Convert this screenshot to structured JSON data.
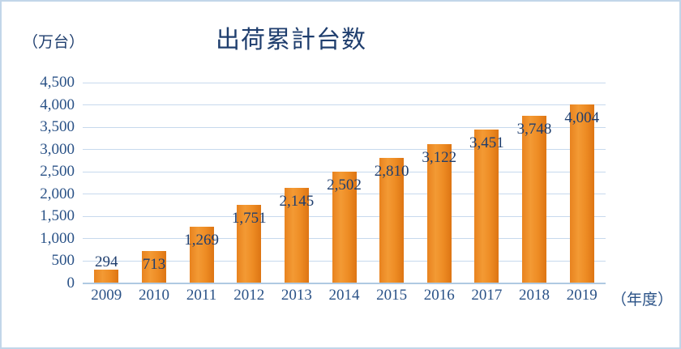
{
  "chart_data": {
    "type": "bar",
    "title": "出荷累計台数",
    "unit_label": "（万台）",
    "xaxis_suffix_label": "（年度）",
    "categories": [
      "2009",
      "2010",
      "2011",
      "2012",
      "2013",
      "2014",
      "2015",
      "2016",
      "2017",
      "2018",
      "2019"
    ],
    "values": [
      294,
      713,
      1269,
      1751,
      2145,
      2502,
      2810,
      3122,
      3451,
      3748,
      4004
    ],
    "data_labels": [
      "294",
      "713",
      "1,269",
      "1,751",
      "2,145",
      "2,502",
      "2,810",
      "3,122",
      "3,451",
      "3,748",
      "4,004"
    ],
    "ylim": [
      0,
      4500
    ],
    "ytick_step": 500,
    "ytick_values": [
      0,
      500,
      1000,
      1500,
      2000,
      2500,
      3000,
      3500,
      4000,
      4500
    ],
    "ytick_labels": [
      "0",
      "500",
      "1,000",
      "1,500",
      "2,000",
      "2,500",
      "3,000",
      "3,500",
      "4,000",
      "4,500"
    ],
    "grid": true,
    "legend": "none",
    "data_label_position": "inside-end (outside for shortest bar)",
    "colors": {
      "bar": "#ED8A24",
      "bar_gradient": [
        "#E8831F",
        "#F39A34",
        "#EE8C24",
        "#DD7513"
      ],
      "title_text": "#1F3E6E",
      "data_label_text": "#1F3E6E",
      "axis_text": "#2A5287",
      "gridline": "#C7D9ED",
      "axis_line": "#AFC9E2",
      "frame_border": "#C2D6E9",
      "background": "#FFFFFF"
    }
  }
}
